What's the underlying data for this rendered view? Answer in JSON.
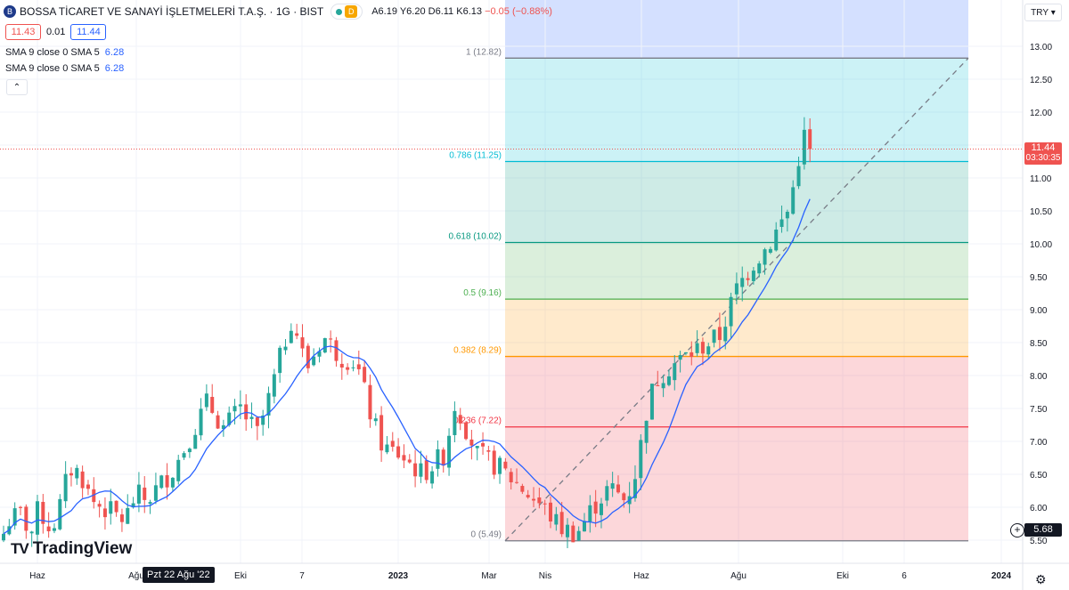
{
  "header": {
    "logo_text": "B",
    "symbol_title": "BOSSA TİCARET VE SANAYİ İŞLETMELERİ T.A.Ş. · 1G · BIST",
    "interval_badge": "D",
    "ohlc": {
      "open": "A6.19",
      "high": "Y6.20",
      "low": "D6.11",
      "close": "K6.13",
      "change": "−0.05 (−0.88%)"
    }
  },
  "bidask": {
    "bid": "11.43",
    "spread": "0.01",
    "ask": "11.44"
  },
  "indicators": [
    {
      "label": "SMA 9 close 0 SMA 5",
      "value": "6.28"
    },
    {
      "label": "SMA 9 close 0 SMA 5",
      "value": "6.28"
    }
  ],
  "icons": {
    "collapse": "chevron-up-icon",
    "add": "plus-circle-icon",
    "settings": "gear-icon",
    "logo": "tradingview-logo-icon"
  },
  "currency": "TRY",
  "watermark": {
    "mark": "TV",
    "text": "TradingView"
  },
  "crosshair_date": "Pzt 22 Ağu '22",
  "last_price_tag": {
    "price": "11.44",
    "countdown": "03:30:35"
  },
  "crosshair_price": "5.68",
  "colors": {
    "up": "#26a69a",
    "down": "#ef5350",
    "sma": "#2962ff",
    "bg_top": "#2962ff"
  },
  "chart_data": {
    "type": "candlestick",
    "x_ticks": [
      "Haz",
      "Ağu",
      "Eki",
      "7",
      "2023",
      "Mar",
      "Nis",
      "Haz",
      "Ağu",
      "Eki",
      "6",
      "2024"
    ],
    "y_ticks": [
      "13.00",
      "12.50",
      "12.00",
      "11.50",
      "11.00",
      "10.50",
      "10.00",
      "9.50",
      "9.00",
      "8.50",
      "8.00",
      "7.50",
      "7.00",
      "6.50",
      "6.00",
      "5.50"
    ],
    "ylim": [
      5.35,
      13.7
    ],
    "price_anchors": [
      [
        0,
        5.6
      ],
      [
        5,
        5.8
      ],
      [
        15,
        5.9
      ],
      [
        25,
        5.6
      ],
      [
        32,
        6.0
      ],
      [
        40,
        5.7
      ],
      [
        48,
        5.8
      ],
      [
        55,
        6.3
      ],
      [
        62,
        6.6
      ],
      [
        70,
        6.5
      ],
      [
        80,
        6.1
      ],
      [
        90,
        6.0
      ],
      [
        100,
        5.9
      ],
      [
        110,
        5.8
      ],
      [
        120,
        6.2
      ],
      [
        130,
        6.1
      ],
      [
        140,
        6.3
      ],
      [
        155,
        6.6
      ],
      [
        170,
        7.1
      ],
      [
        185,
        7.6
      ],
      [
        200,
        7.2
      ],
      [
        215,
        7.5
      ],
      [
        230,
        7.1
      ],
      [
        240,
        7.6
      ],
      [
        255,
        8.5
      ],
      [
        262,
        8.9
      ],
      [
        275,
        8.1
      ],
      [
        290,
        8.6
      ],
      [
        305,
        8.3
      ],
      [
        320,
        8.2
      ],
      [
        335,
        7.3
      ],
      [
        345,
        6.9
      ],
      [
        360,
        6.8
      ],
      [
        380,
        6.5
      ],
      [
        400,
        6.8
      ],
      [
        410,
        7.6
      ],
      [
        430,
        6.8
      ],
      [
        450,
        6.6
      ],
      [
        470,
        6.3
      ],
      [
        490,
        6.0
      ],
      [
        505,
        5.7
      ],
      [
        520,
        5.6
      ],
      [
        535,
        6.0
      ],
      [
        550,
        6.3
      ],
      [
        565,
        6.1
      ],
      [
        575,
        6.6
      ],
      [
        585,
        7.6
      ],
      [
        595,
        8.0
      ],
      [
        610,
        8.2
      ],
      [
        630,
        8.4
      ],
      [
        650,
        8.6
      ],
      [
        665,
        9.3
      ],
      [
        680,
        9.7
      ],
      [
        695,
        10.0
      ],
      [
        712,
        10.5
      ],
      [
        720,
        11.1
      ],
      [
        725,
        11.7
      ],
      [
        732,
        11.44
      ]
    ],
    "fibonacci": [
      {
        "label": "1 (12.82)",
        "level": "1",
        "price": 12.82,
        "color": "#787b86",
        "fill": "#787b86"
      },
      {
        "label": "0.786 (11.25)",
        "level": "0.786",
        "price": 11.25,
        "color": "#00bcd4",
        "fill": "#00bcd4"
      },
      {
        "label": "0.618 (10.02)",
        "level": "0.618",
        "price": 10.02,
        "color": "#089981",
        "fill": "#089981"
      },
      {
        "label": "0.5 (9.16)",
        "level": "0.5",
        "price": 9.16,
        "color": "#4caf50",
        "fill": "#4caf50"
      },
      {
        "label": "0.382 (8.29)",
        "level": "0.382",
        "price": 8.29,
        "color": "#ff9800",
        "fill": "#ff9800"
      },
      {
        "label": "0.236 (7.22)",
        "level": "0.236",
        "price": 7.22,
        "color": "#f23645",
        "fill": "#f23645"
      },
      {
        "label": "0 (5.49)",
        "level": "0",
        "price": 5.49,
        "color": "#787b86",
        "fill": "#f23645"
      }
    ],
    "last_price": 11.44
  }
}
